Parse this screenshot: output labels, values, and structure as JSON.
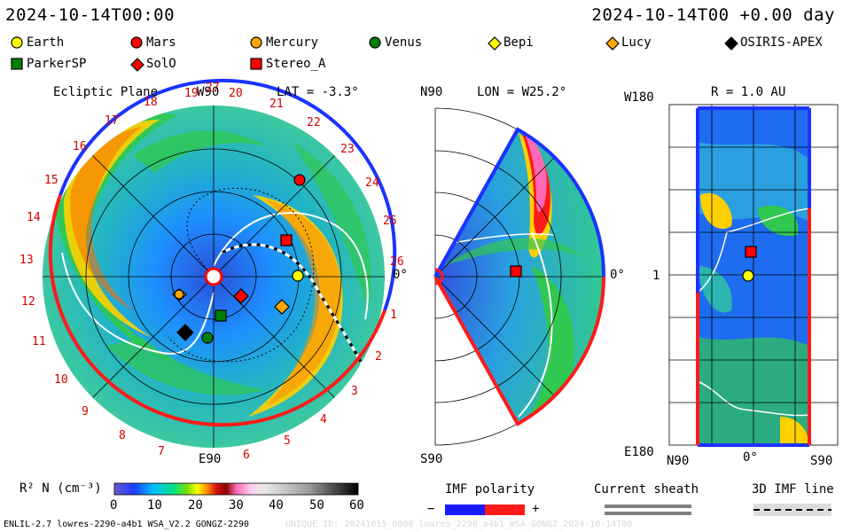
{
  "header": {
    "left_time": "2024-10-14T00:00",
    "right_time": "2024-10-14T00 +0.00 day"
  },
  "legend": [
    {
      "label": "Earth",
      "shape": "circle",
      "color": "#ffff00"
    },
    {
      "label": "Mars",
      "shape": "circle",
      "color": "#ff0000"
    },
    {
      "label": "Mercury",
      "shape": "circle",
      "color": "#ffa500"
    },
    {
      "label": "Venus",
      "shape": "circle",
      "color": "#008000"
    },
    {
      "label": "Bepi",
      "shape": "diamond",
      "color": "#ffff00"
    },
    {
      "label": "Lucy",
      "shape": "diamond",
      "color": "#ffa500"
    },
    {
      "label": "OSIRIS-APEX",
      "shape": "diamond",
      "color": "#000000"
    },
    {
      "label": "ParkerSP",
      "shape": "square",
      "color": "#008000"
    },
    {
      "label": "SolO",
      "shape": "diamond",
      "color": "#ff0000"
    },
    {
      "label": "Stereo_A",
      "shape": "square",
      "color": "#ff0000"
    }
  ],
  "panels": {
    "ecliptic": {
      "title": "Ecliptic Plane",
      "lat": "LAT = -3.3°",
      "top_label": "W90",
      "bottom_label": "E90",
      "right_label": "0°",
      "day_numbers": [
        "1",
        "2",
        "3",
        "4",
        "5",
        "6",
        "7",
        "8",
        "9",
        "10",
        "11",
        "12",
        "13",
        "14",
        "15",
        "16",
        "17",
        "18",
        "19",
        "20",
        "21",
        "22",
        "23",
        "24",
        "25",
        "26",
        "27"
      ]
    },
    "meridional": {
      "lon": "LON = W25.2°",
      "top_label": "N90",
      "bottom_label": "S90",
      "right_label": "0°"
    },
    "sphere": {
      "r": "R = 1.0 AU",
      "top_left": "W180",
      "mid_left": "1",
      "bottom_left": "E180",
      "bottom_labels": [
        "N90",
        "0°",
        "S90"
      ]
    }
  },
  "colorbar": {
    "label": "R² N (cm⁻³)",
    "ticks": [
      "0",
      "10",
      "20",
      "30",
      "40",
      "50",
      "60"
    ],
    "min": 0,
    "max": 60
  },
  "imf": {
    "title": "IMF polarity",
    "minus": "−",
    "plus": "+"
  },
  "current_sheath": {
    "title": "Current sheath"
  },
  "imf_line": {
    "title": "3D IMF line"
  },
  "footer": {
    "left": "ENLIL-2.7 lowres-2290-a4b1 WSA_V2.2 GONGZ-2290",
    "right": "UNIQUE ID: 20241015_0000_lowres_2290_a4b1_WSA_GONGZ_2024-10-14T00"
  }
}
